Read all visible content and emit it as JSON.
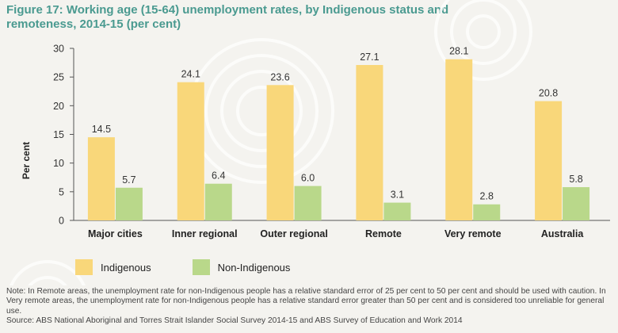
{
  "title": "Figure 17: Working age (15-64) unemployment rates, by Indigenous status and remoteness, 2014-15 (per cent)",
  "colors": {
    "indigenous": "#f9d77a",
    "non_indigenous": "#b9d88a",
    "title": "#4a9a90"
  },
  "chart_data": {
    "type": "bar",
    "title": "Figure 17: Working age (15-64) unemployment rates, by Indigenous status and remoteness, 2014-15 (per cent)",
    "categories": [
      "Major cities",
      "Inner regional",
      "Outer regional",
      "Remote",
      "Very remote",
      "Australia"
    ],
    "series": [
      {
        "name": "Indigenous",
        "values": [
          14.5,
          24.1,
          23.6,
          27.1,
          28.1,
          20.8
        ]
      },
      {
        "name": "Non-Indigenous",
        "values": [
          5.7,
          6.4,
          6.0,
          3.1,
          2.8,
          5.8
        ]
      }
    ],
    "value_labels": [
      [
        "14.5",
        "24.1",
        "23.6",
        "27.1",
        "28.1",
        "20.8"
      ],
      [
        "5.7",
        "6.4",
        "6.0",
        "3.1",
        "2.8",
        "5.8"
      ]
    ],
    "xlabel": "",
    "ylabel": "Per cent",
    "ylim": [
      0,
      30
    ],
    "yticks": [
      "0",
      "5",
      "10",
      "15",
      "20",
      "25",
      "30"
    ],
    "grid": false,
    "legend_position": "bottom-left"
  },
  "legend": {
    "indigenous": "Indigenous",
    "non_indigenous": "Non-Indigenous"
  },
  "notes": {
    "note": "Note: In Remote areas, the unemployment rate for non-Indigenous people has a relative standard error of 25 per cent to 50 per cent and should be used with caution. In Very remote areas, the unemployment rate for non-Indigenous people has a relative standard error greater than 50 per cent and is considered too unreliable for general use.",
    "source": "Source: ABS National Aboriginal and Torres Strait Islander Social Survey 2014-15 and ABS Survey of Education and Work 2014"
  }
}
